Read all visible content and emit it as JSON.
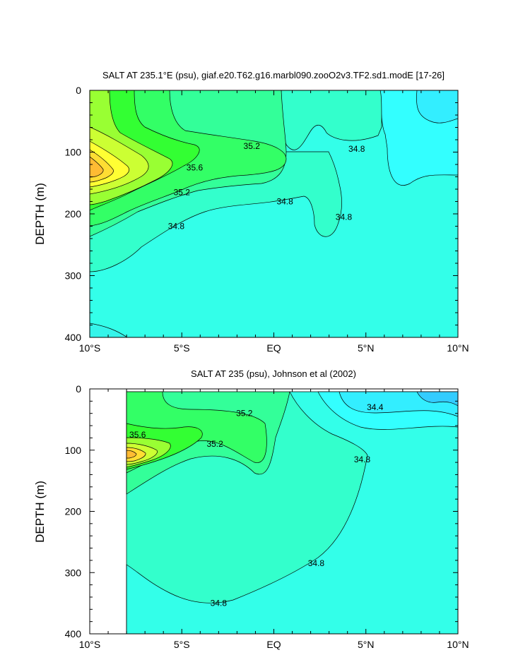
{
  "chart_data": [
    {
      "type": "contour",
      "title": "SALT AT 235.1°E (psu), giaf.e20.T62.g16.marbl090.zooO2v3.TF2.sd1.modE [17-26]",
      "xlabel": "",
      "ylabel": "DEPTH (m)",
      "xlim": [
        -10,
        10
      ],
      "ylim": [
        400,
        0
      ],
      "xticks": [
        {
          "value": -10,
          "label": "10°S"
        },
        {
          "value": -5,
          "label": "5°S"
        },
        {
          "value": 0,
          "label": "EQ"
        },
        {
          "value": 5,
          "label": "5°N"
        },
        {
          "value": 10,
          "label": "10°N"
        }
      ],
      "yticks": [
        {
          "value": 0,
          "label": "0"
        },
        {
          "value": 100,
          "label": "100"
        },
        {
          "value": 200,
          "label": "200"
        },
        {
          "value": 300,
          "label": "300"
        },
        {
          "value": 400,
          "label": "400"
        }
      ],
      "contour_labels": [
        {
          "x": -4.3,
          "y": 125,
          "text": "35.6"
        },
        {
          "x": -1.2,
          "y": 90,
          "text": "35.2"
        },
        {
          "x": 4.5,
          "y": 95,
          "text": "34.8"
        },
        {
          "x": -5.0,
          "y": 165,
          "text": "35.2"
        },
        {
          "x": 0.6,
          "y": 180,
          "text": "34.8"
        },
        {
          "x": -5.3,
          "y": 220,
          "text": "34.8"
        },
        {
          "x": 3.8,
          "y": 205,
          "text": "34.8"
        }
      ]
    },
    {
      "type": "contour",
      "title": "SALT AT 235 (psu), Johnson et al (2002)",
      "xlabel": "",
      "ylabel": "DEPTH (m)",
      "xlim": [
        -10,
        10
      ],
      "ylim": [
        400,
        0
      ],
      "data_xmin": -8,
      "xticks": [
        {
          "value": -10,
          "label": "10°S"
        },
        {
          "value": -5,
          "label": "5°S"
        },
        {
          "value": 0,
          "label": "EQ"
        },
        {
          "value": 5,
          "label": "5°N"
        },
        {
          "value": 10,
          "label": "10°N"
        }
      ],
      "yticks": [
        {
          "value": 0,
          "label": "0"
        },
        {
          "value": 100,
          "label": "100"
        },
        {
          "value": 200,
          "label": "200"
        },
        {
          "value": 300,
          "label": "300"
        },
        {
          "value": 400,
          "label": "400"
        }
      ],
      "contour_labels": [
        {
          "x": -1.6,
          "y": 40,
          "text": "35.2"
        },
        {
          "x": 5.5,
          "y": 30,
          "text": "34.4"
        },
        {
          "x": -7.4,
          "y": 75,
          "text": "35.6"
        },
        {
          "x": -3.2,
          "y": 90,
          "text": "35.2"
        },
        {
          "x": 4.8,
          "y": 115,
          "text": "34.8"
        },
        {
          "x": 2.3,
          "y": 285,
          "text": "34.8"
        },
        {
          "x": -3.0,
          "y": 350,
          "text": "34.8"
        }
      ]
    }
  ]
}
